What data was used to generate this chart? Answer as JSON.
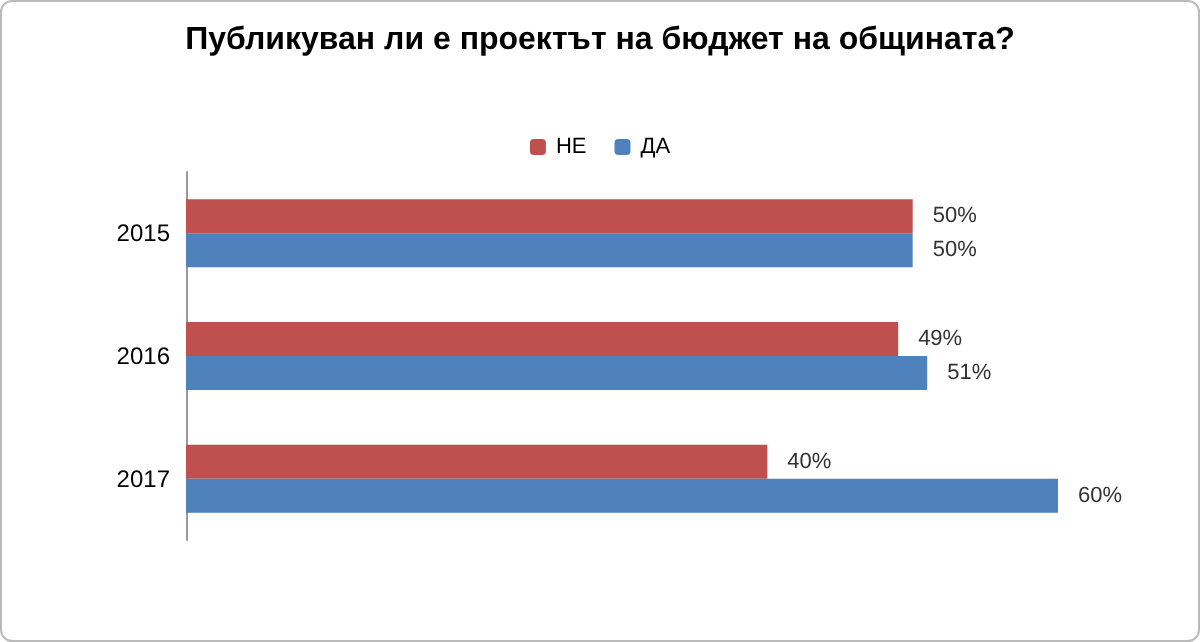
{
  "chart_data": {
    "type": "bar",
    "title": "Публикуван ли е проектът на бюджет на общината?",
    "orientation": "horizontal",
    "categories": [
      "2015",
      "2016",
      "2017"
    ],
    "series": [
      {
        "name": "НЕ",
        "color": "#c0504d",
        "values": [
          50,
          49,
          40
        ],
        "value_labels": [
          "50%",
          "49%",
          "40%"
        ]
      },
      {
        "name": "ДА",
        "color": "#4f81bd",
        "values": [
          50,
          51,
          60
        ],
        "value_labels": [
          "50%",
          "51%",
          "60%"
        ]
      }
    ],
    "legend": "top"
  }
}
